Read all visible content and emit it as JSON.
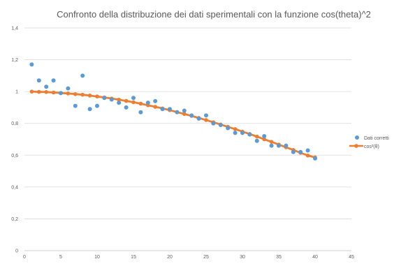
{
  "chart_data": {
    "type": "scatter",
    "title": "Confronto della distribuzione dei dati sperimentali con la funzione cos(theta)^2",
    "xlabel": "",
    "ylabel": "",
    "xlim": [
      0,
      45
    ],
    "ylim": [
      0,
      1.4
    ],
    "x_ticks": [
      "0",
      "5",
      "10",
      "15",
      "20",
      "25",
      "30",
      "35",
      "40",
      "45"
    ],
    "y_ticks": [
      "0",
      "0,2",
      "0,4",
      "0,6",
      "0,8",
      "1",
      "1,2",
      "1,4"
    ],
    "grid": true,
    "legend_position": "right",
    "series": [
      {
        "name": "Dati corretti",
        "kind": "markers",
        "color": "#5B9BD5",
        "x": [
          1,
          2,
          3,
          4,
          5,
          6,
          7,
          8,
          9,
          10,
          11,
          12,
          13,
          14,
          15,
          16,
          17,
          18,
          19,
          20,
          21,
          22,
          23,
          24,
          25,
          26,
          27,
          28,
          29,
          30,
          31,
          32,
          33,
          34,
          35,
          36,
          37,
          38,
          39,
          40
        ],
        "y": [
          1.17,
          1.07,
          1.03,
          1.07,
          0.99,
          1.02,
          0.91,
          1.1,
          0.89,
          0.91,
          0.96,
          0.95,
          0.93,
          0.9,
          0.96,
          0.87,
          0.93,
          0.94,
          0.89,
          0.89,
          0.87,
          0.88,
          0.85,
          0.83,
          0.85,
          0.8,
          0.79,
          0.77,
          0.74,
          0.74,
          0.73,
          0.69,
          0.72,
          0.66,
          0.66,
          0.66,
          0.62,
          0.62,
          0.63,
          0.58
        ]
      },
      {
        "name": "cos²(θ)",
        "kind": "line-markers",
        "color": "#ED7D31",
        "x": [
          1,
          2,
          3,
          4,
          5,
          6,
          7,
          8,
          9,
          10,
          11,
          12,
          13,
          14,
          15,
          16,
          17,
          18,
          19,
          20,
          21,
          22,
          23,
          24,
          25,
          26,
          27,
          28,
          29,
          30,
          31,
          32,
          33,
          34,
          35,
          36,
          37,
          38,
          39,
          40
        ],
        "y": [
          1.0,
          0.998,
          0.997,
          0.994,
          0.991,
          0.988,
          0.984,
          0.98,
          0.975,
          0.969,
          0.963,
          0.956,
          0.949,
          0.941,
          0.933,
          0.924,
          0.914,
          0.904,
          0.894,
          0.883,
          0.871,
          0.859,
          0.847,
          0.834,
          0.821,
          0.807,
          0.793,
          0.778,
          0.764,
          0.748,
          0.733,
          0.717,
          0.7,
          0.684,
          0.667,
          0.65,
          0.633,
          0.615,
          0.598,
          0.586
        ]
      }
    ]
  }
}
